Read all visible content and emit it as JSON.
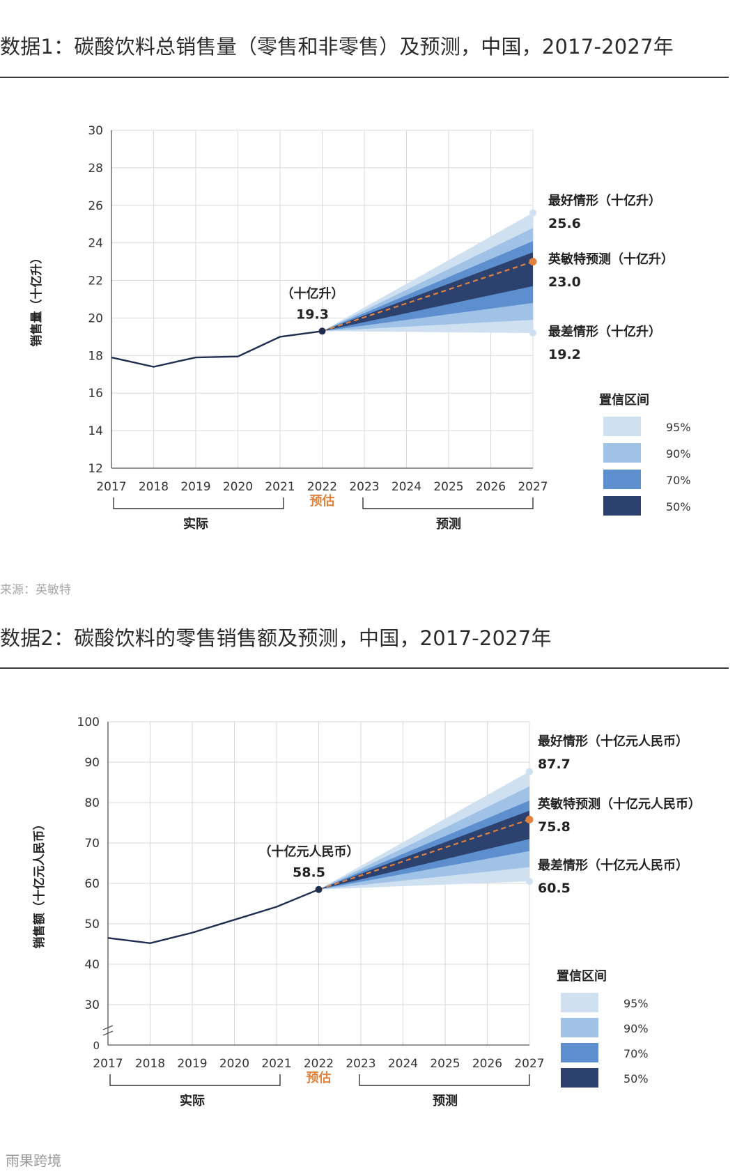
{
  "figure1": {
    "title": "数据1：碳酸饮料总销售量（零售和非零售）及预测，中国，2017-2027年",
    "source": "来源：英敏特"
  },
  "figure2": {
    "title": "数据2：碳酸饮料的零售销售额及预测，中国，2017-2027年"
  },
  "watermark": "雨果跨境",
  "colors": {
    "actual_line": "#1f2d50",
    "forecast_line": "#e0823d",
    "ci95": "#cfe0f0",
    "ci90": "#9fc2e6",
    "ci70": "#5d8fcf",
    "ci50": "#2c416d",
    "grid": "#d9d9d9",
    "axis": "#555555",
    "estimate_label": "#e0823d"
  },
  "chart_data": [
    {
      "type": "line",
      "categories": [
        "2017",
        "2018",
        "2019",
        "2020",
        "2021",
        "2022",
        "2023",
        "2024",
        "2025",
        "2026",
        "2027"
      ],
      "ylabel": "销售量（十亿升）",
      "ylim": [
        12,
        30
      ],
      "yticks": [
        12,
        14,
        16,
        18,
        20,
        22,
        24,
        26,
        28,
        30
      ],
      "ytick_labels": [
        "12",
        "14",
        "16",
        "18",
        "20",
        "22",
        "24",
        "26",
        "28",
        "30"
      ],
      "axis_break": false,
      "actual": [
        17.9,
        17.4,
        17.9,
        17.95,
        19.0,
        19.3
      ],
      "forecast_start_index": 5,
      "forecast": [
        19.3,
        20.04,
        20.78,
        21.52,
        22.26,
        23.0
      ],
      "bands": {
        "95": {
          "upper": [
            19.3,
            20.56,
            21.82,
            23.08,
            24.34,
            25.6
          ],
          "lower": [
            19.3,
            19.28,
            19.26,
            19.24,
            19.22,
            19.2
          ]
        },
        "90": {
          "upper": [
            19.3,
            20.4,
            21.5,
            22.6,
            23.7,
            24.8
          ],
          "lower": [
            19.3,
            19.42,
            19.54,
            19.66,
            19.78,
            19.9
          ]
        },
        "70": {
          "upper": [
            19.3,
            20.26,
            21.22,
            22.18,
            23.14,
            24.1
          ],
          "lower": [
            19.3,
            19.6,
            19.9,
            20.2,
            20.5,
            20.8
          ]
        },
        "50": {
          "upper": [
            19.3,
            20.14,
            20.98,
            21.82,
            22.66,
            23.5
          ],
          "lower": [
            19.3,
            19.78,
            20.26,
            20.74,
            21.22,
            21.7
          ]
        }
      },
      "point_unit_label": "（十亿升）",
      "point_value_label": "19.3",
      "best_case": {
        "label": "最好情形（十亿升）",
        "value": 25.6,
        "value_label": "25.6"
      },
      "mintel_forecast": {
        "label": "英敏特预测（十亿升）",
        "value": 23.0,
        "value_label": "23.0"
      },
      "worst_case": {
        "label": "最差情形（十亿升）",
        "value": 19.2,
        "value_label": "19.2"
      },
      "legend_title": "置信区间",
      "legend": [
        "95%",
        "90%",
        "70%",
        "50%"
      ],
      "segment_actual": "实际",
      "segment_estimate": "预估",
      "segment_forecast": "预测"
    },
    {
      "type": "line",
      "categories": [
        "2017",
        "2018",
        "2019",
        "2020",
        "2021",
        "2022",
        "2023",
        "2024",
        "2025",
        "2026",
        "2027"
      ],
      "ylabel": "销售额（十亿元人民币）",
      "ylim": [
        20,
        100
      ],
      "yticks": [
        30,
        40,
        50,
        60,
        70,
        80,
        90,
        100
      ],
      "ytick_labels": [
        "30",
        "40",
        "50",
        "60",
        "70",
        "80",
        "90",
        "100"
      ],
      "axis_break": true,
      "axis_zero_label": "0",
      "actual": [
        46.5,
        45.2,
        47.8,
        51.0,
        54.2,
        58.5
      ],
      "forecast_start_index": 5,
      "forecast": [
        58.5,
        61.96,
        65.42,
        68.88,
        72.34,
        75.8
      ],
      "bands": {
        "95": {
          "upper": [
            58.5,
            64.34,
            70.18,
            76.02,
            81.86,
            87.7
          ],
          "lower": [
            58.5,
            58.9,
            59.3,
            59.7,
            60.1,
            60.5
          ]
        },
        "90": {
          "upper": [
            58.5,
            63.6,
            68.7,
            73.8,
            78.9,
            84.0
          ],
          "lower": [
            58.5,
            59.6,
            60.7,
            61.8,
            62.9,
            64.0
          ]
        },
        "70": {
          "upper": [
            58.5,
            62.9,
            67.3,
            71.7,
            76.1,
            80.5
          ],
          "lower": [
            58.5,
            60.4,
            62.3,
            64.2,
            66.1,
            68.0
          ]
        },
        "50": {
          "upper": [
            58.5,
            62.4,
            66.3,
            70.2,
            74.1,
            78.0
          ],
          "lower": [
            58.5,
            61.0,
            63.5,
            66.0,
            68.5,
            71.0
          ]
        }
      },
      "point_unit_label": "（十亿元人民币）",
      "point_value_label": "58.5",
      "best_case": {
        "label": "最好情形（十亿元人民币）",
        "value": 87.7,
        "value_label": "87.7"
      },
      "mintel_forecast": {
        "label": "英敏特预测（十亿元人民币）",
        "value": 75.8,
        "value_label": "75.8"
      },
      "worst_case": {
        "label": "最差情形（十亿元人民币）",
        "value": 60.5,
        "value_label": "60.5"
      },
      "legend_title": "置信区间",
      "legend": [
        "95%",
        "90%",
        "70%",
        "50%"
      ],
      "segment_actual": "实际",
      "segment_estimate": "预估",
      "segment_forecast": "预测"
    }
  ]
}
